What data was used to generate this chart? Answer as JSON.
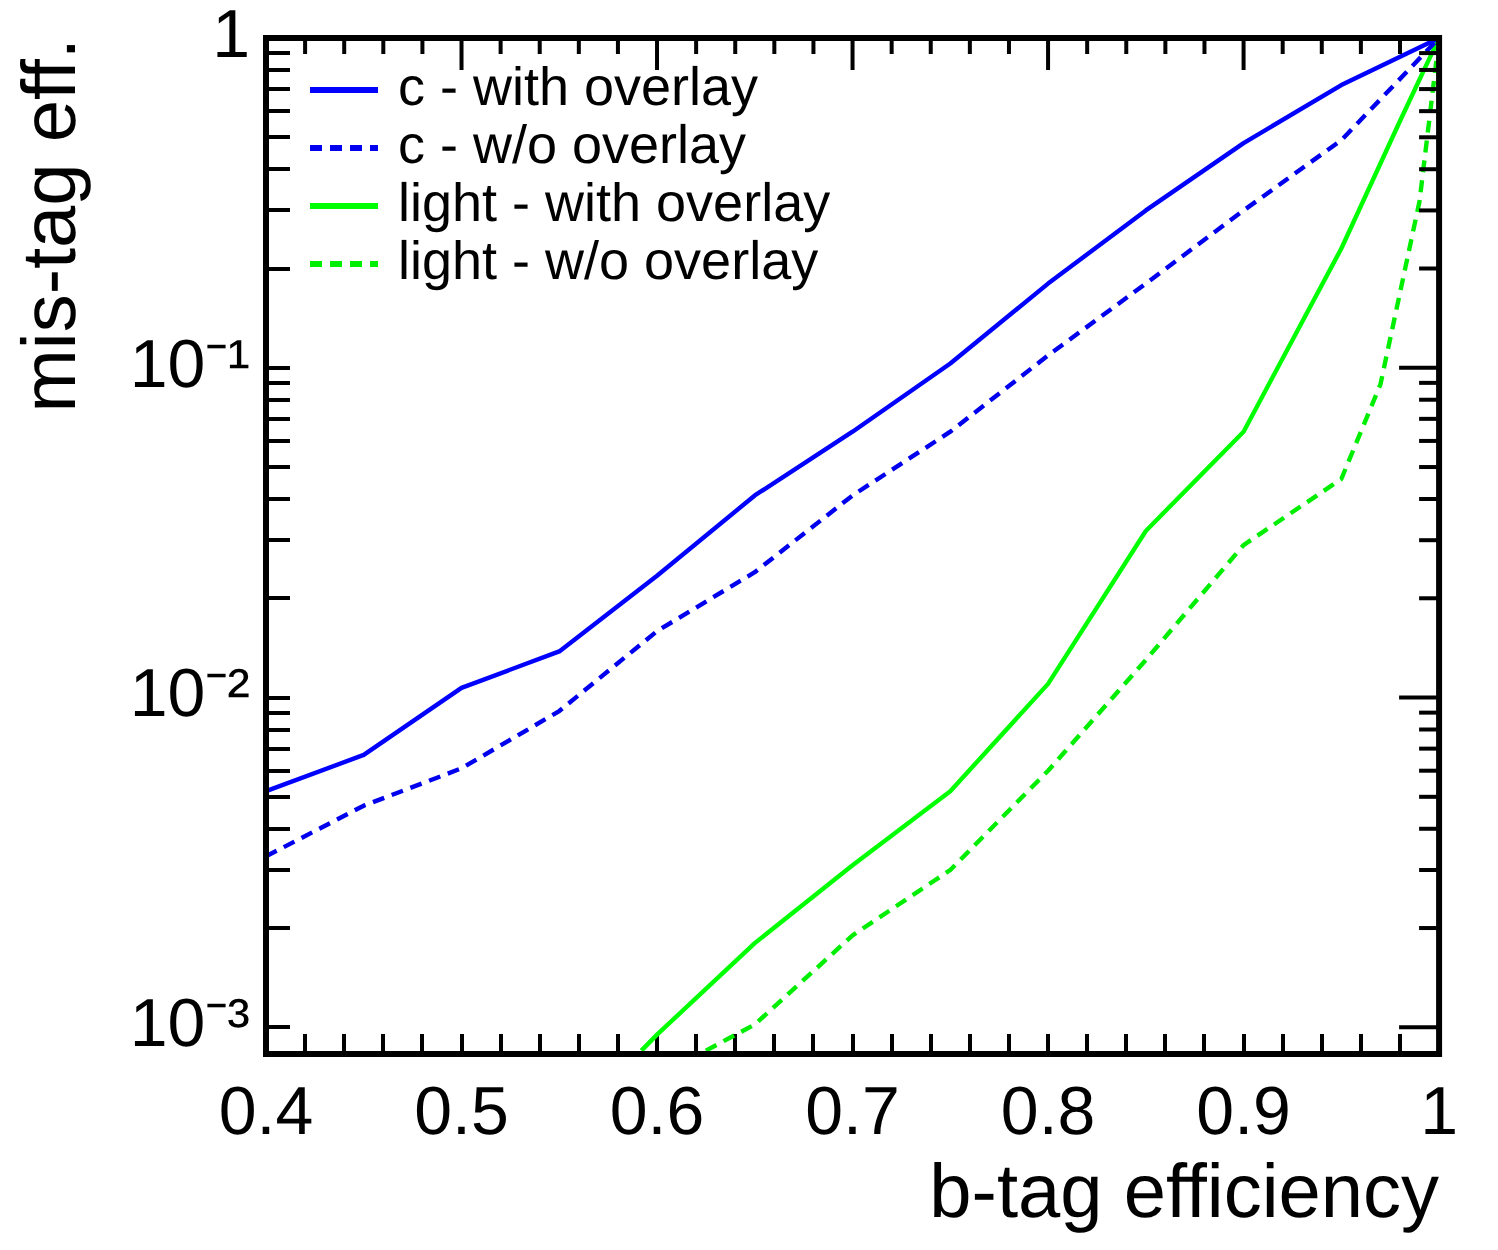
{
  "chart_data": {
    "type": "line",
    "xlabel": "b-tag efficiency",
    "ylabel": "mis-tag eff.",
    "log": "y",
    "legend": "top left",
    "marker": "none",
    "xlim": [
      0.4,
      1
    ],
    "ylim": [
      0.00083,
      1
    ],
    "xticks": [
      0.4,
      {
        "value": 0.42,
        "label": null
      },
      {
        "value": 0.44,
        "label": null
      },
      {
        "value": 0.46,
        "label": null
      },
      {
        "value": 0.48,
        "label": null
      },
      0.5,
      {
        "value": 0.52,
        "label": null
      },
      {
        "value": 0.54,
        "label": null
      },
      {
        "value": 0.56,
        "label": null
      },
      {
        "value": 0.58,
        "label": null
      },
      0.6,
      {
        "value": 0.62,
        "label": null
      },
      {
        "value": 0.64,
        "label": null
      },
      {
        "value": 0.66,
        "label": null
      },
      {
        "value": 0.68,
        "label": null
      },
      0.7,
      {
        "value": 0.72,
        "label": null
      },
      {
        "value": 0.74,
        "label": null
      },
      {
        "value": 0.76,
        "label": null
      },
      {
        "value": 0.78,
        "label": null
      },
      0.8,
      {
        "value": 0.82,
        "label": null
      },
      {
        "value": 0.84,
        "label": null
      },
      {
        "value": 0.86,
        "label": null
      },
      {
        "value": 0.88,
        "label": null
      },
      0.9,
      {
        "value": 0.92,
        "label": null
      },
      {
        "value": 0.94,
        "label": null
      },
      {
        "value": 0.96,
        "label": null
      },
      {
        "value": 0.98,
        "label": null
      },
      1
    ],
    "yticks": [
      {
        "value": 0.001,
        "label": "10⁻³"
      },
      {
        "value": 0.002,
        "label": null
      },
      {
        "value": 0.003,
        "label": null
      },
      {
        "value": 0.004,
        "label": null
      },
      {
        "value": 0.005,
        "label": null
      },
      {
        "value": 0.006,
        "label": null
      },
      {
        "value": 0.007,
        "label": null
      },
      {
        "value": 0.008,
        "label": null
      },
      {
        "value": 0.009,
        "label": null
      },
      {
        "value": 0.01,
        "label": "10⁻²"
      },
      {
        "value": 0.02,
        "label": null
      },
      {
        "value": 0.03,
        "label": null
      },
      {
        "value": 0.04,
        "label": null
      },
      {
        "value": 0.05,
        "label": null
      },
      {
        "value": 0.06,
        "label": null
      },
      {
        "value": 0.07,
        "label": null
      },
      {
        "value": 0.08,
        "label": null
      },
      {
        "value": 0.09,
        "label": null
      },
      {
        "value": 0.1,
        "label": "10⁻¹"
      },
      {
        "value": 0.2,
        "label": null
      },
      {
        "value": 0.3,
        "label": null
      },
      {
        "value": 0.4,
        "label": null
      },
      {
        "value": 0.5,
        "label": null
      },
      {
        "value": 0.6,
        "label": null
      },
      {
        "value": 0.7,
        "label": null
      },
      {
        "value": 0.8,
        "label": null
      },
      {
        "value": 0.9,
        "label": null
      },
      {
        "value": 1,
        "label": "1"
      }
    ],
    "series": [
      {
        "name": "c - with overlay",
        "color": "#0000ff",
        "line_style": "solid",
        "x": [
          0.4,
          0.45,
          0.5,
          0.55,
          0.6,
          0.65,
          0.7,
          0.75,
          0.8,
          0.85,
          0.9,
          0.95,
          1
        ],
        "values": [
          0.0052,
          0.0067,
          0.0107,
          0.0138,
          0.0234,
          0.041,
          0.064,
          0.103,
          0.18,
          0.3,
          0.48,
          0.72,
          1
        ]
      },
      {
        "name": "c - w/o overlay",
        "color": "#0000ee",
        "line_style": "dashed",
        "x": [
          0.4,
          0.45,
          0.5,
          0.55,
          0.6,
          0.65,
          0.7,
          0.75,
          0.8,
          0.85,
          0.9,
          0.95,
          1
        ],
        "values": [
          0.0033,
          0.0047,
          0.0061,
          0.0091,
          0.0159,
          0.024,
          0.041,
          0.064,
          0.109,
          0.18,
          0.3,
          0.49,
          1
        ]
      },
      {
        "name": "light - with overlay",
        "color": "#00ff00",
        "line_style": "solid",
        "x": [
          0.592,
          0.6,
          0.65,
          0.7,
          0.75,
          0.8,
          0.85,
          0.9,
          0.95,
          0.98,
          1
        ],
        "values": [
          0.00085,
          0.00095,
          0.0018,
          0.0031,
          0.0052,
          0.011,
          0.032,
          0.064,
          0.23,
          0.56,
          1
        ]
      },
      {
        "name": "light - w/o overlay",
        "color": "#00ee00",
        "line_style": "dashed",
        "x": [
          0.625,
          0.65,
          0.7,
          0.75,
          0.8,
          0.85,
          0.9,
          0.95,
          0.97,
          0.99,
          1
        ],
        "values": [
          0.00085,
          0.00102,
          0.0019,
          0.003,
          0.006,
          0.013,
          0.029,
          0.046,
          0.089,
          0.32,
          1
        ]
      }
    ]
  }
}
